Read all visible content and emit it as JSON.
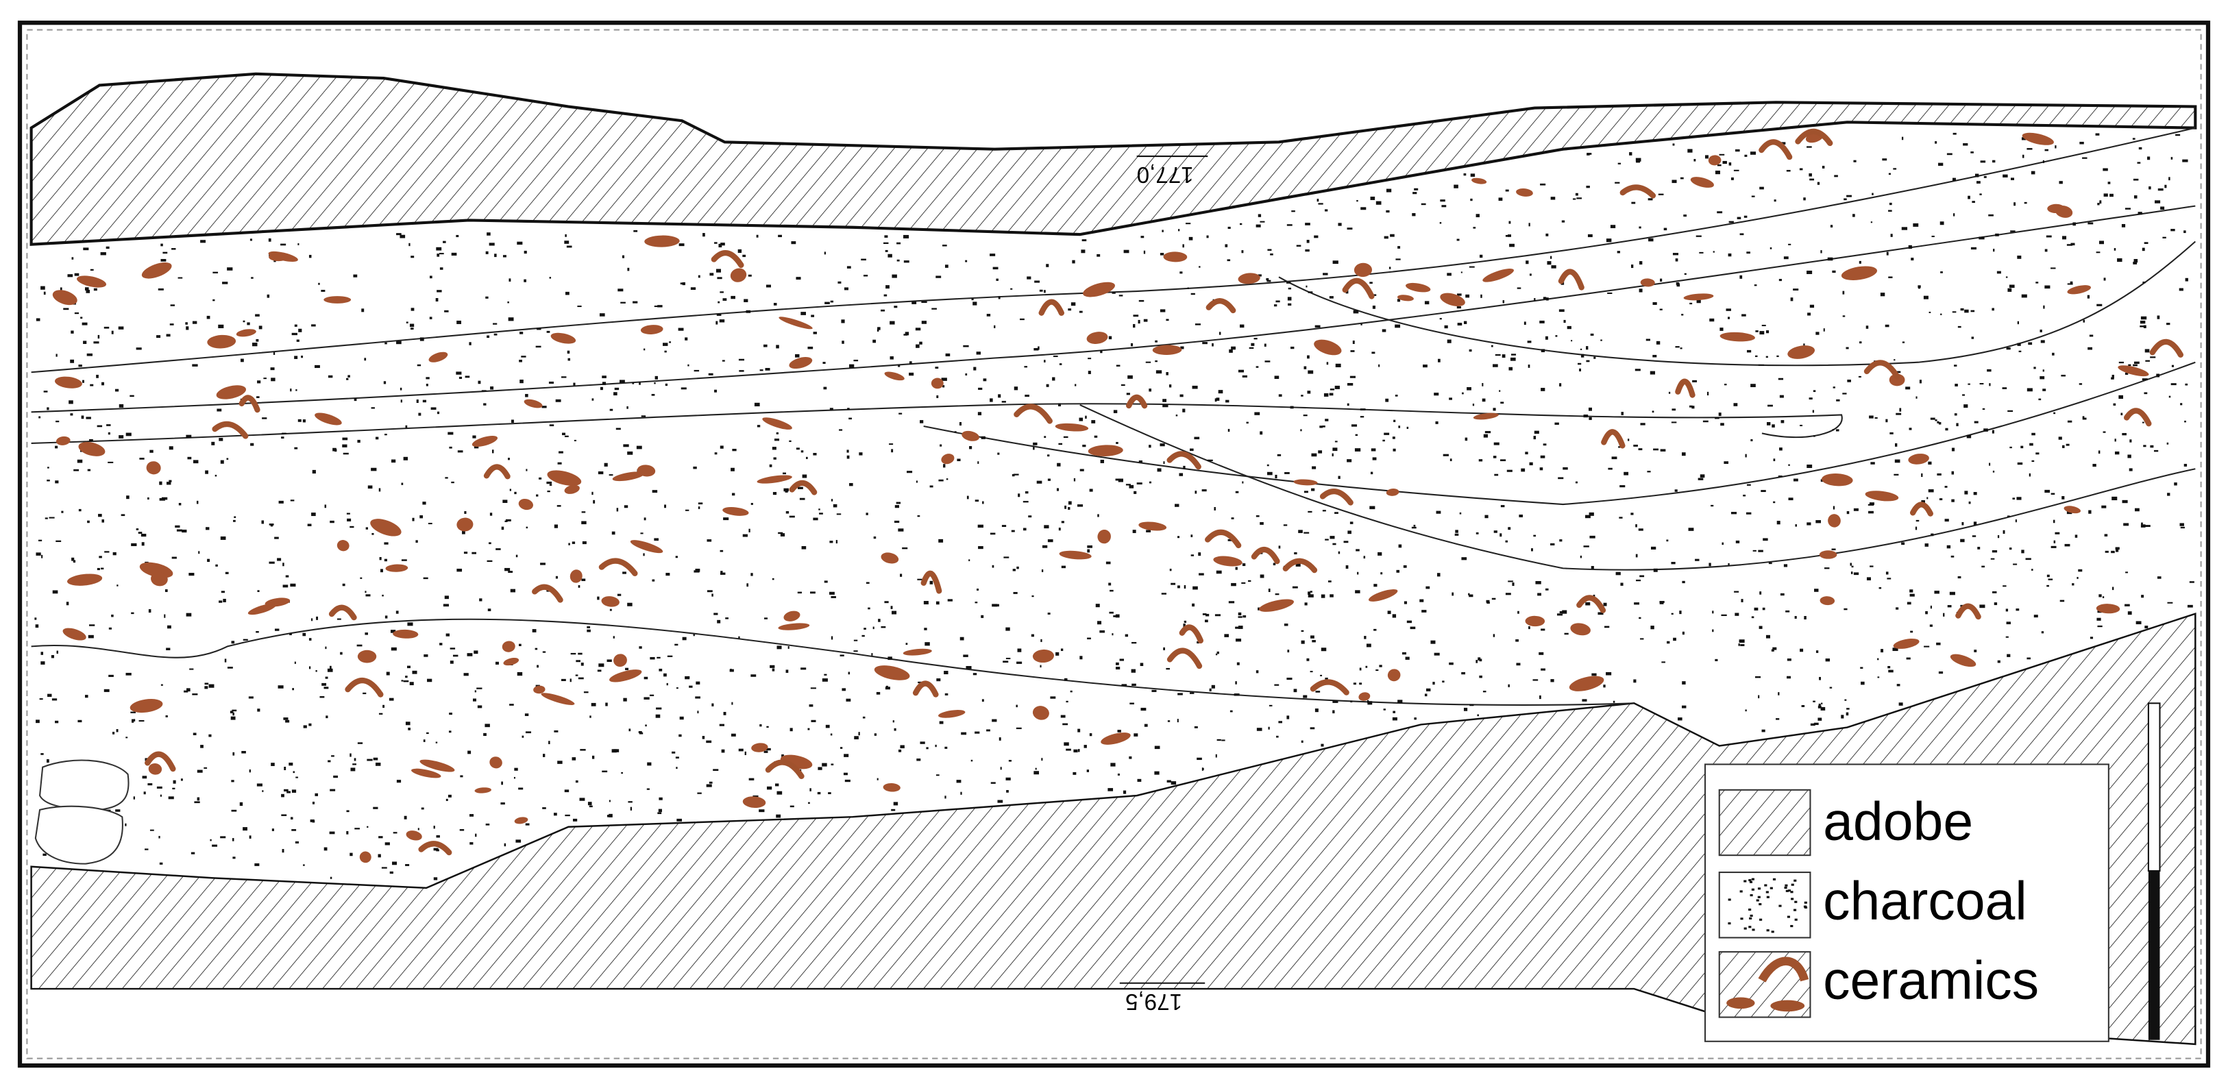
{
  "elevations": {
    "top": "177,0",
    "bottom": "179,5"
  },
  "legend": [
    "adobe",
    "charcoal",
    "ceramics"
  ]
}
